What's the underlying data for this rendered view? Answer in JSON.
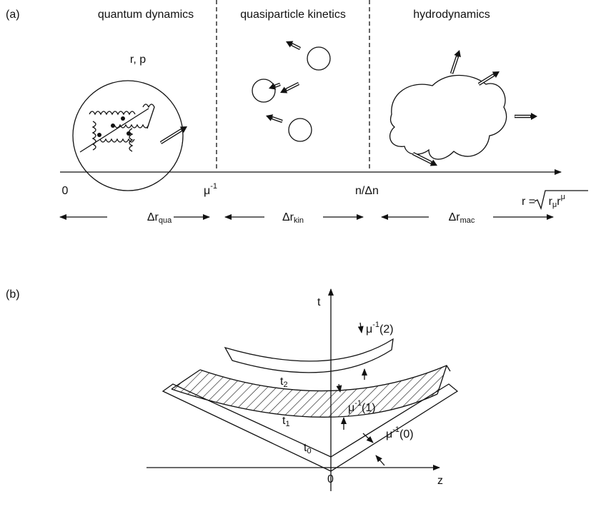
{
  "panel_a": {
    "label": "(a)",
    "regions": [
      "quantum dynamics",
      "quasiparticle kinetics",
      "hydrodynamics"
    ],
    "particle_label": "r, p",
    "axis_labels": {
      "origin": "0",
      "mu_inv": {
        "base": "μ",
        "sup": "-1"
      },
      "n_dn": "n/Δn",
      "r": {
        "lhs": "r = ",
        "base1": "r",
        "sub": "μ",
        "base2": "r",
        "sup": "μ"
      }
    },
    "ranges": [
      {
        "base": "Δr",
        "sub": "qua"
      },
      {
        "base": "Δr",
        "sub": "kin"
      },
      {
        "base": "Δr",
        "sub": "mac"
      }
    ]
  },
  "panel_b": {
    "label": "(b)",
    "t_axis": "t",
    "z_axis": "z",
    "origin": "0",
    "times": [
      {
        "base": "t",
        "sub": "0"
      },
      {
        "base": "t",
        "sub": "1"
      },
      {
        "base": "t",
        "sub": "2"
      }
    ],
    "widths": [
      {
        "base": "μ",
        "sup": "-1",
        "arg": "(0)"
      },
      {
        "base": "μ",
        "sup": "-1",
        "arg": "(1)"
      },
      {
        "base": "μ",
        "sup": "-1",
        "arg": "(2)"
      }
    ]
  }
}
